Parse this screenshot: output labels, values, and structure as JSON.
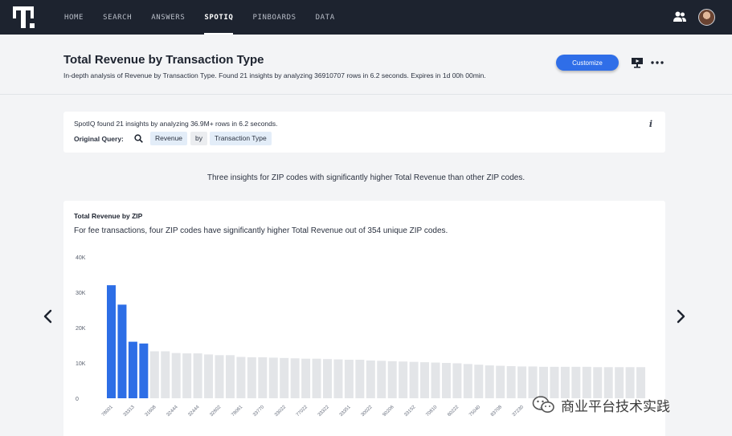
{
  "nav": {
    "items": [
      {
        "label": "HOME",
        "active": false
      },
      {
        "label": "SEARCH",
        "active": false
      },
      {
        "label": "ANSWERS",
        "active": false
      },
      {
        "label": "SPOTIQ",
        "active": true
      },
      {
        "label": "PINBOARDS",
        "active": false
      },
      {
        "label": "DATA",
        "active": false
      }
    ]
  },
  "header": {
    "title": "Total Revenue by Transaction Type",
    "subtitle": "In-depth analysis of Revenue by Transaction Type. Found 21 insights by analyzing 36910707 rows in 6.2 seconds. Expires in 1d 00h 00min.",
    "customize_label": "Customize"
  },
  "query_card": {
    "found_text": "SpotIQ found 21 insights by analyzing 36.9M+ rows in 6.2 seconds.",
    "original_query_label": "Original Query:",
    "tokens": [
      {
        "label": "Revenue",
        "kind": "column"
      },
      {
        "label": "by",
        "kind": "keyword"
      },
      {
        "label": "Transaction Type",
        "kind": "column"
      }
    ]
  },
  "insight_summary": "Three insights for ZIP codes with significantly higher Total Revenue than other ZIP codes.",
  "insight_card": {
    "title": "Total Revenue by ZIP",
    "description": "For fee transactions, four ZIP codes have significantly higher Total Revenue out of 354 unique ZIP codes."
  },
  "chart_data": {
    "type": "bar",
    "ylim": [
      0,
      40000
    ],
    "yticks": [
      0,
      10000,
      20000,
      30000,
      40000
    ],
    "ytick_labels": [
      "0",
      "10K",
      "20K",
      "30K",
      "40K"
    ],
    "highlight_color": "#2d6ee6",
    "base_color": "#e3e5e8",
    "highlight_count": 4,
    "values": [
      32000,
      26500,
      16000,
      15500,
      13300,
      13300,
      12800,
      12700,
      12700,
      12400,
      12200,
      12200,
      11700,
      11600,
      11600,
      11500,
      11400,
      11300,
      11200,
      11200,
      11100,
      11000,
      10900,
      10900,
      10700,
      10600,
      10500,
      10400,
      10300,
      10200,
      10100,
      10000,
      9900,
      9700,
      9500,
      9300,
      9200,
      9100,
      9000,
      9000,
      8900,
      8900,
      8900,
      8900,
      8900,
      8800,
      8800,
      8800,
      8800,
      8800
    ],
    "tick_labels": [
      "78001",
      "33313",
      "31608",
      "32444",
      "32444",
      "32802",
      "78061",
      "33770",
      "33022",
      "77022",
      "33322",
      "33351",
      "30022",
      "90206",
      "33152",
      "70810",
      "60222",
      "75040",
      "83708",
      "37230",
      "63",
      "",
      "",
      "",
      "",
      ""
    ],
    "tick_label_every": 2
  },
  "watermark": {
    "text": "商业平台技术实践"
  }
}
